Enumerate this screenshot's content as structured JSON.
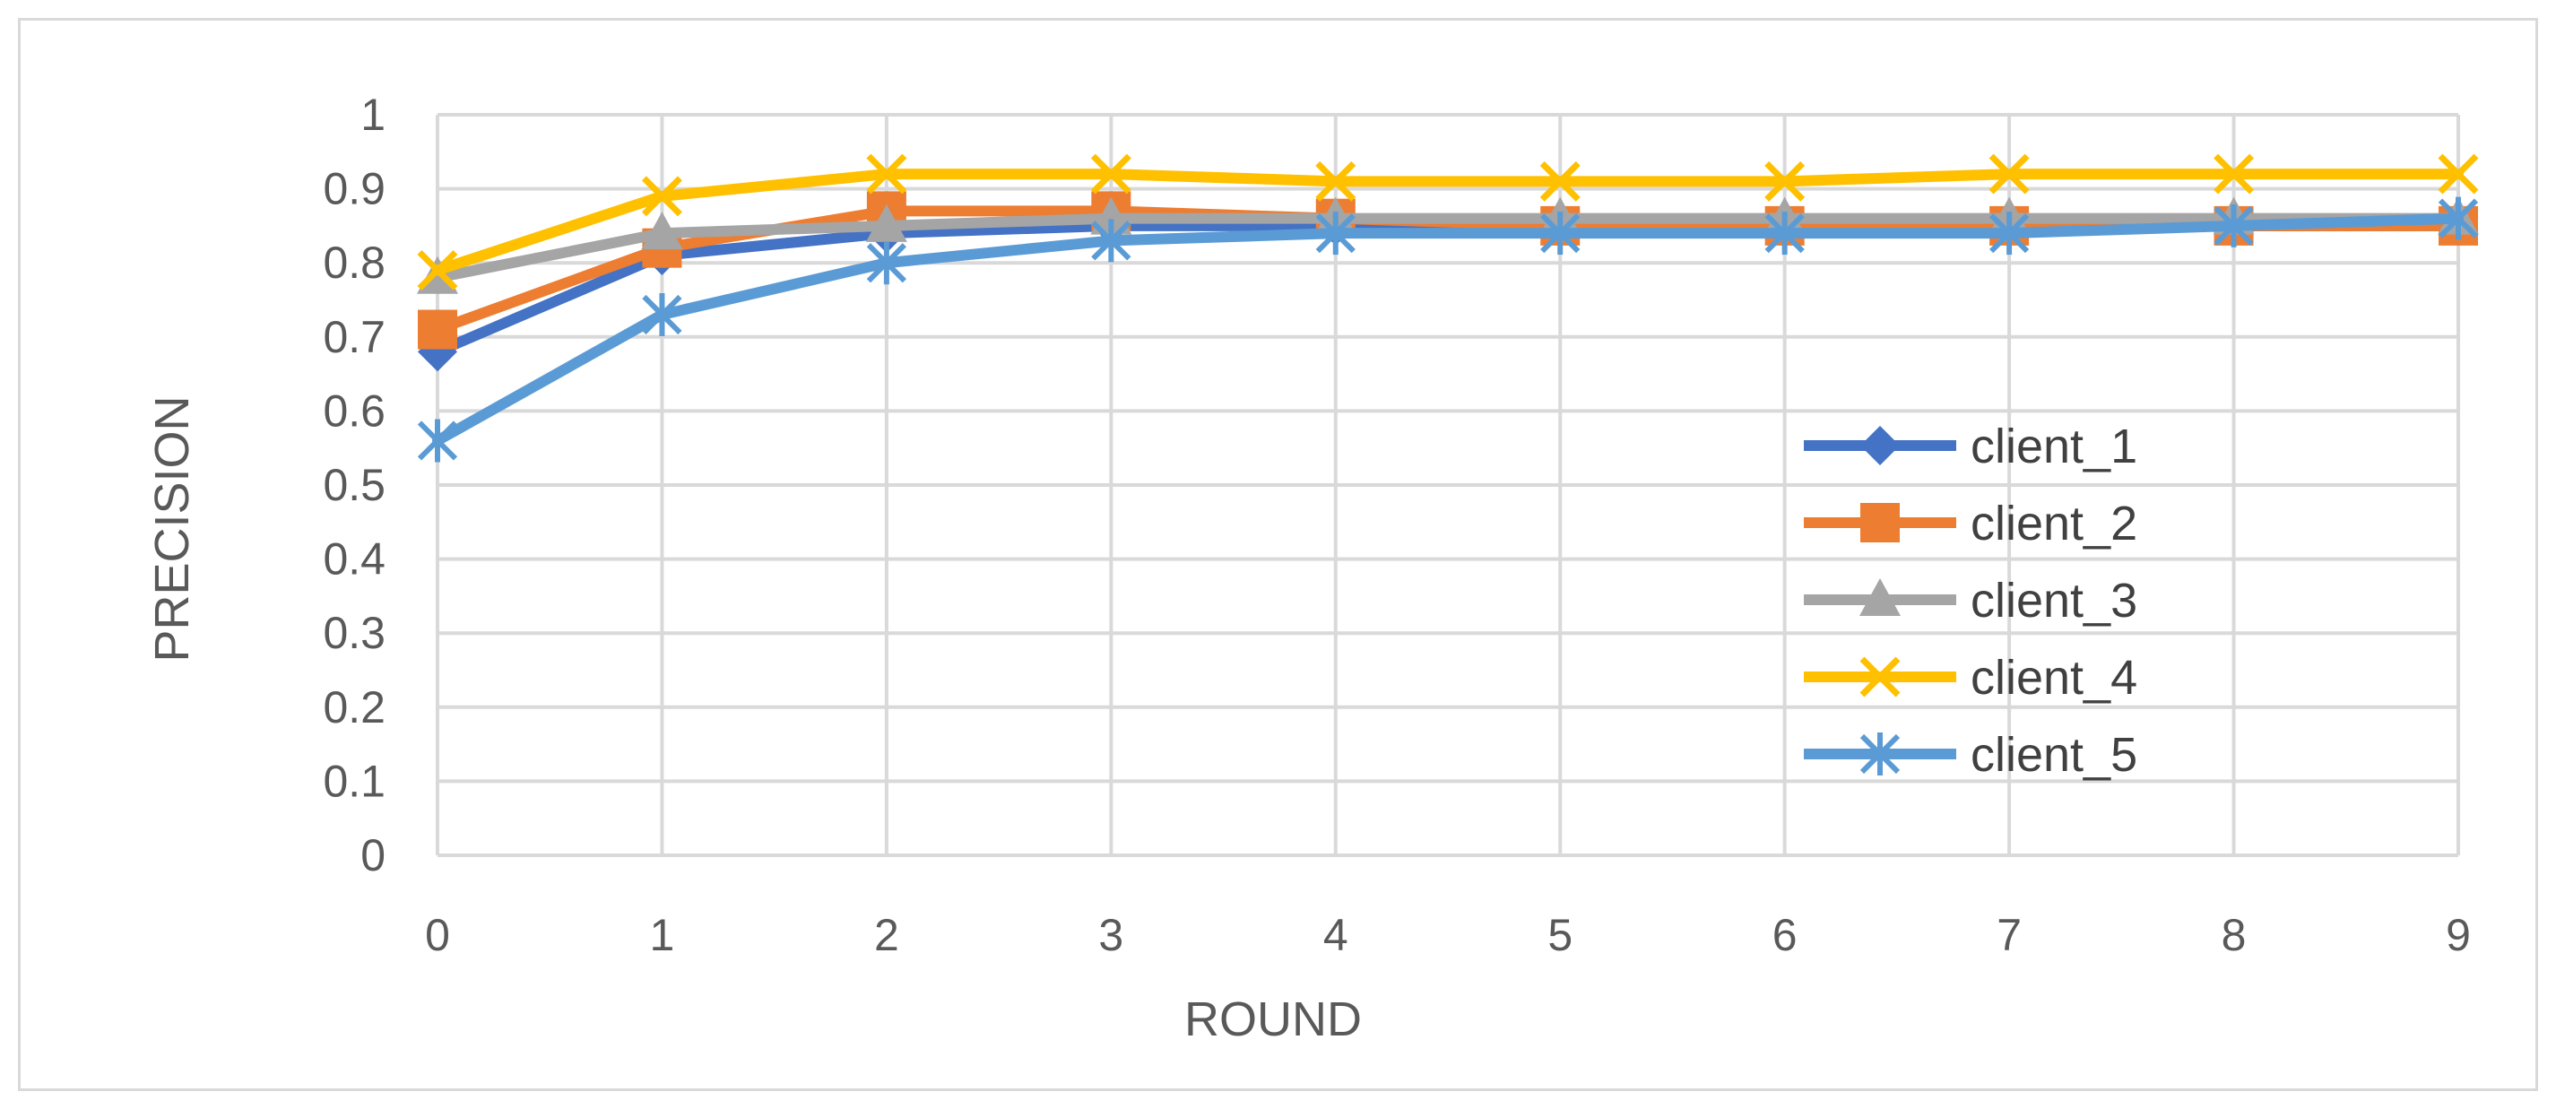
{
  "chart_data": {
    "type": "line",
    "title": "",
    "xlabel": "ROUND",
    "ylabel": "PRECISION",
    "x": [
      0,
      1,
      2,
      3,
      4,
      5,
      6,
      7,
      8,
      9
    ],
    "x_ticks": [
      "0",
      "1",
      "2",
      "3",
      "4",
      "5",
      "6",
      "7",
      "8",
      "9"
    ],
    "y_ticks": [
      "0",
      "0.1",
      "0.2",
      "0.3",
      "0.4",
      "0.5",
      "0.6",
      "0.7",
      "0.8",
      "0.9",
      "1"
    ],
    "ylim": [
      0,
      1
    ],
    "grid": true,
    "legend_position": "right",
    "series": [
      {
        "name": "client_1",
        "color": "#4472c4",
        "marker": "diamond",
        "values": [
          0.68,
          0.81,
          0.84,
          0.85,
          0.85,
          0.85,
          0.85,
          0.85,
          0.85,
          0.85
        ]
      },
      {
        "name": "client_2",
        "color": "#ed7d31",
        "marker": "square",
        "values": [
          0.71,
          0.82,
          0.87,
          0.87,
          0.86,
          0.85,
          0.85,
          0.85,
          0.85,
          0.85
        ]
      },
      {
        "name": "client_3",
        "color": "#a5a5a5",
        "marker": "triangle",
        "values": [
          0.78,
          0.84,
          0.85,
          0.86,
          0.86,
          0.86,
          0.86,
          0.86,
          0.86,
          0.86
        ]
      },
      {
        "name": "client_4",
        "color": "#ffc000",
        "marker": "x",
        "values": [
          0.79,
          0.89,
          0.92,
          0.92,
          0.91,
          0.91,
          0.91,
          0.92,
          0.92,
          0.92
        ]
      },
      {
        "name": "client_5",
        "color": "#5b9bd5",
        "marker": "asterisk",
        "values": [
          0.56,
          0.73,
          0.8,
          0.83,
          0.84,
          0.84,
          0.84,
          0.84,
          0.85,
          0.86
        ]
      }
    ]
  }
}
